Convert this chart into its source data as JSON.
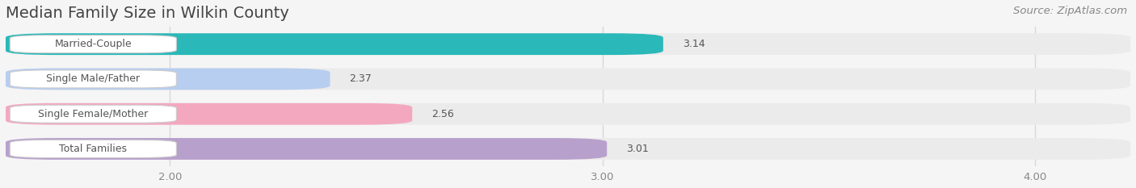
{
  "title": "Median Family Size in Wilkin County",
  "source": "Source: ZipAtlas.com",
  "categories": [
    "Married-Couple",
    "Single Male/Father",
    "Single Female/Mother",
    "Total Families"
  ],
  "values": [
    3.14,
    2.37,
    2.56,
    3.01
  ],
  "bar_colors": [
    "#2ab8b8",
    "#b8cef0",
    "#f4a8c0",
    "#b8a0cc"
  ],
  "xlim_left": 1.62,
  "xlim_right": 4.22,
  "xticks": [
    2.0,
    3.0,
    4.0
  ],
  "xtick_labels": [
    "2.00",
    "3.00",
    "4.00"
  ],
  "value_labels": [
    "3.14",
    "2.37",
    "2.56",
    "3.01"
  ],
  "background_color": "#f5f5f5",
  "title_fontsize": 14,
  "source_fontsize": 9.5,
  "label_fontsize": 9,
  "value_fontsize": 9,
  "tick_fontsize": 9.5,
  "bar_height": 0.62,
  "bar_gap": 0.18
}
